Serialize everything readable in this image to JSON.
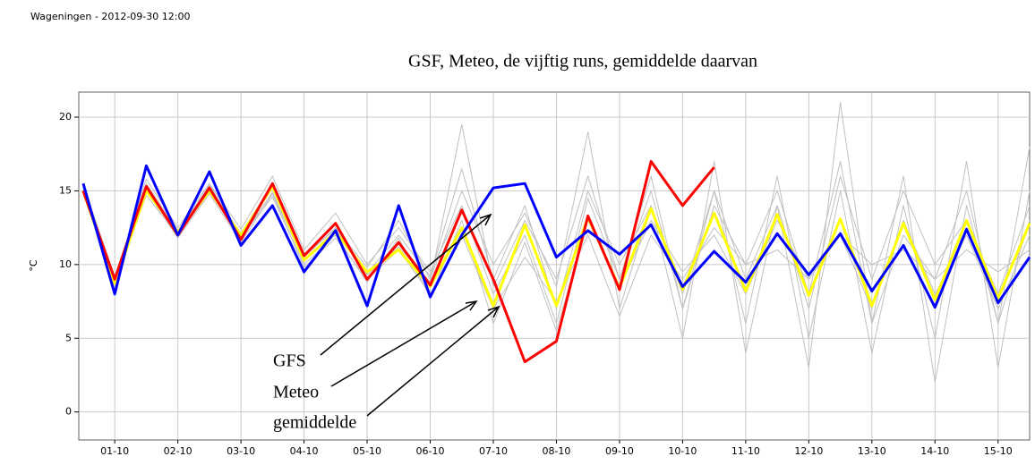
{
  "chart_data": {
    "type": "line",
    "title": "Wageningen - 2012-09-30 12:00",
    "subtitle": "GSF, Meteo, de vijftig runs, gemiddelde daarvan",
    "y_label": "°C",
    "x": [
      0.5,
      1,
      1.5,
      2,
      2.5,
      3,
      3.5,
      4,
      4.5,
      5,
      5.5,
      6,
      6.5,
      7,
      7.5,
      8,
      8.5,
      9,
      9.5,
      10,
      10.5,
      11,
      11.5,
      12,
      12.5,
      13,
      13.5,
      14,
      14.5,
      15,
      15.5
    ],
    "xlim": [
      0.43,
      15.5
    ],
    "xticks": [
      {
        "value": 1,
        "label": "01-10"
      },
      {
        "value": 2,
        "label": "02-10"
      },
      {
        "value": 3,
        "label": "03-10"
      },
      {
        "value": 4,
        "label": "04-10"
      },
      {
        "value": 5,
        "label": "05-10"
      },
      {
        "value": 6,
        "label": "06-10"
      },
      {
        "value": 7,
        "label": "07-10"
      },
      {
        "value": 8,
        "label": "08-10"
      },
      {
        "value": 9,
        "label": "09-10"
      },
      {
        "value": 10,
        "label": "10-10"
      },
      {
        "value": 11,
        "label": "11-10"
      },
      {
        "value": 12,
        "label": "12-10"
      },
      {
        "value": 13,
        "label": "13-10"
      },
      {
        "value": 14,
        "label": "14-10"
      },
      {
        "value": 15,
        "label": "15-10"
      }
    ],
    "ylim": [
      -1.9,
      21.7
    ],
    "yticks": [
      0,
      5,
      10,
      15,
      20
    ],
    "grid": true,
    "series": [
      {
        "color": "#c0c0c0",
        "values": [
          15.2,
          9,
          15.8,
          12.5,
          15.5,
          12.4,
          16,
          11,
          13.5,
          10,
          12.5,
          9.5,
          14,
          8,
          12,
          6,
          14.5,
          9,
          16,
          7,
          15,
          6,
          16,
          5,
          15,
          4,
          14,
          5,
          17,
          3,
          15
        ]
      },
      {
        "color": "#c0c0c0",
        "values": [
          15,
          8.5,
          15,
          11.8,
          14.8,
          11.5,
          14.8,
          9.8,
          11.8,
          9,
          11,
          8,
          12,
          7,
          10.5,
          7.5,
          12,
          6.5,
          12,
          9,
          12.5,
          10,
          11,
          9,
          12,
          10,
          11,
          9,
          11,
          9.5,
          11
        ]
      },
      {
        "color": "#c0c0c0",
        "values": [
          15.4,
          9.2,
          15.5,
          12.3,
          15.3,
          12.1,
          15.5,
          10.5,
          12.5,
          9.8,
          13,
          9,
          15,
          10,
          13.5,
          8.5,
          19,
          7,
          14,
          5,
          17,
          4,
          14,
          3,
          21,
          6,
          16,
          2,
          14,
          6,
          18
        ]
      },
      {
        "color": "#c0c0c0",
        "values": [
          14.8,
          8.8,
          14.7,
          12,
          14.9,
          11.9,
          14.6,
          10,
          12,
          8.8,
          11.8,
          7.8,
          13,
          6,
          11.5,
          5.5,
          13,
          8.5,
          13,
          9.5,
          12,
          8,
          13,
          9,
          12,
          7,
          13,
          8,
          12,
          7,
          12
        ]
      },
      {
        "color": "#c0c0c0",
        "values": [
          15.1,
          8.6,
          15.2,
          12.2,
          15.4,
          12,
          15.2,
          10.6,
          12.4,
          9.4,
          12,
          9.2,
          16.5,
          9,
          14,
          7,
          15,
          10,
          14,
          8,
          15,
          9,
          14,
          7,
          16,
          9,
          15,
          10,
          13,
          8,
          14
        ]
      },
      {
        "color": "#c0c0c0",
        "values": [
          15,
          8.7,
          15.1,
          12,
          15.1,
          11.8,
          14.9,
          10.2,
          12.3,
          9.3,
          11.2,
          8.8,
          19.5,
          8.5,
          13,
          9,
          16,
          9,
          15,
          7,
          14,
          10,
          15,
          8,
          17,
          6,
          12,
          9,
          15,
          6,
          13
        ]
      },
      {
        "name": "gemiddelde",
        "color": "#ffff00",
        "values": [
          15,
          8.7,
          15,
          12.2,
          15,
          12,
          15.3,
          10.3,
          12.2,
          9.5,
          11,
          8.5,
          12.5,
          7.2,
          12.7,
          7.2,
          13.2,
          8.4,
          13.8,
          8.3,
          13.5,
          8.2,
          13.4,
          7.9,
          13.1,
          7.2,
          12.8,
          7.6,
          13,
          7.7,
          12.8
        ]
      },
      {
        "name": "Meteo",
        "color": "#ff0000",
        "values": [
          15,
          9,
          15.3,
          12,
          15.2,
          11.7,
          15.5,
          10.6,
          12.8,
          9,
          11.5,
          8.6,
          13.7,
          9,
          3.4,
          4.8,
          13.3,
          8.3,
          17,
          14,
          16.6,
          null,
          null,
          null,
          null,
          null,
          null,
          null,
          null,
          null,
          null
        ]
      },
      {
        "name": "GFS",
        "color": "#0000ff",
        "values": [
          15.5,
          8,
          16.7,
          12,
          16.3,
          11.3,
          14,
          9.5,
          12.3,
          7.2,
          14,
          7.8,
          12,
          15.2,
          15.5,
          10.5,
          12.3,
          10.7,
          12.7,
          8.5,
          10.9,
          8.8,
          12.1,
          9.3,
          12.1,
          8.2,
          11.3,
          7.1,
          12.4,
          7.4,
          10.5
        ]
      }
    ]
  }
}
